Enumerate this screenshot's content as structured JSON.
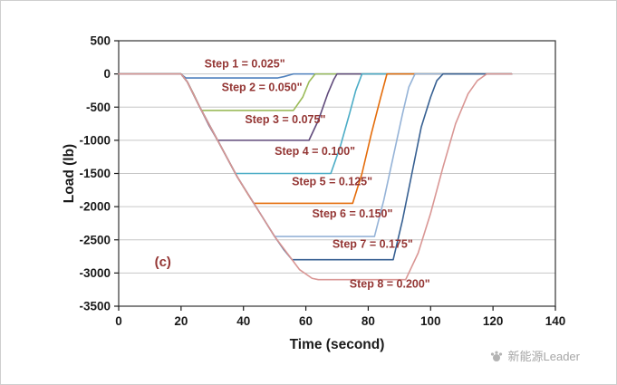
{
  "watermark": {
    "label": "新能源Leader"
  },
  "chart_data": {
    "type": "line",
    "title": "",
    "xlabel": "Time (second)",
    "ylabel": "Load (lb)",
    "xlim": [
      0,
      140
    ],
    "ylim": [
      -3500,
      500
    ],
    "xticks": [
      0,
      20,
      40,
      60,
      80,
      100,
      120,
      140
    ],
    "yticks": [
      500,
      0,
      -500,
      -1000,
      -1500,
      -2000,
      -2500,
      -3000,
      -3500
    ],
    "grid": "horizontal",
    "gridline_color": "#c6c6c6",
    "legend": "none",
    "axis_color": "#1a1a1a",
    "annotation_color": "#943634",
    "series": [
      {
        "name": "Step 1 = 0.025\"",
        "color": "#4F81BD",
        "plateau_load": -60,
        "points": [
          [
            0,
            0
          ],
          [
            20,
            0
          ],
          [
            20.7,
            -30
          ],
          [
            21.5,
            -60
          ],
          [
            51,
            -60
          ],
          [
            53,
            -40
          ],
          [
            56,
            0
          ],
          [
            126,
            0
          ]
        ]
      },
      {
        "name": "Step 2 = 0.050\"",
        "color": "#9BBB59",
        "plateau_load": -550,
        "points": [
          [
            0,
            0
          ],
          [
            20,
            0
          ],
          [
            22,
            -120
          ],
          [
            24,
            -300
          ],
          [
            26.5,
            -550
          ],
          [
            56,
            -550
          ],
          [
            59,
            -350
          ],
          [
            61,
            -120
          ],
          [
            63,
            0
          ],
          [
            126,
            0
          ]
        ]
      },
      {
        "name": "Step 3 = 0.075\"",
        "color": "#604A7B",
        "plateau_load": -1000,
        "points": [
          [
            0,
            0
          ],
          [
            20,
            0
          ],
          [
            22,
            -120
          ],
          [
            26,
            -500
          ],
          [
            29,
            -780
          ],
          [
            31.7,
            -1000
          ],
          [
            61,
            -1000
          ],
          [
            64,
            -700
          ],
          [
            67,
            -300
          ],
          [
            69,
            -80
          ],
          [
            70,
            0
          ],
          [
            126,
            0
          ]
        ]
      },
      {
        "name": "Step 4 = 0.100\"",
        "color": "#4BACC6",
        "plateau_load": -1500,
        "points": [
          [
            0,
            0
          ],
          [
            20,
            0
          ],
          [
            22,
            -120
          ],
          [
            26,
            -500
          ],
          [
            30,
            -850
          ],
          [
            34,
            -1200
          ],
          [
            37.4,
            -1500
          ],
          [
            68,
            -1500
          ],
          [
            71,
            -1100
          ],
          [
            74,
            -600
          ],
          [
            76,
            -250
          ],
          [
            78,
            0
          ],
          [
            126,
            0
          ]
        ]
      },
      {
        "name": "Step 5 = 0.125\"",
        "color": "#E46C0A",
        "plateau_load": -1950,
        "points": [
          [
            0,
            0
          ],
          [
            20,
            0
          ],
          [
            22,
            -120
          ],
          [
            26,
            -500
          ],
          [
            30,
            -850
          ],
          [
            34,
            -1200
          ],
          [
            38,
            -1550
          ],
          [
            41,
            -1780
          ],
          [
            43.3,
            -1950
          ],
          [
            75,
            -1950
          ],
          [
            78,
            -1500
          ],
          [
            81,
            -900
          ],
          [
            84,
            -350
          ],
          [
            86,
            0
          ],
          [
            126,
            0
          ]
        ]
      },
      {
        "name": "Step 6 = 0.150\"",
        "color": "#95B3D7",
        "plateau_load": -2450,
        "points": [
          [
            0,
            0
          ],
          [
            20,
            0
          ],
          [
            22,
            -120
          ],
          [
            26,
            -500
          ],
          [
            30,
            -850
          ],
          [
            34,
            -1200
          ],
          [
            38,
            -1550
          ],
          [
            42,
            -1850
          ],
          [
            46,
            -2150
          ],
          [
            50,
            -2450
          ],
          [
            82,
            -2450
          ],
          [
            85,
            -1900
          ],
          [
            88,
            -1250
          ],
          [
            91,
            -600
          ],
          [
            93,
            -200
          ],
          [
            95,
            0
          ],
          [
            126,
            0
          ]
        ]
      },
      {
        "name": "Step 7 = 0.175\"",
        "color": "#376092",
        "plateau_load": -2800,
        "points": [
          [
            0,
            0
          ],
          [
            20,
            0
          ],
          [
            22,
            -120
          ],
          [
            26,
            -500
          ],
          [
            30,
            -850
          ],
          [
            34,
            -1200
          ],
          [
            38,
            -1550
          ],
          [
            42,
            -1850
          ],
          [
            46,
            -2150
          ],
          [
            50,
            -2450
          ],
          [
            53,
            -2650
          ],
          [
            55.6,
            -2800
          ],
          [
            88,
            -2800
          ],
          [
            91,
            -2200
          ],
          [
            94,
            -1500
          ],
          [
            97,
            -800
          ],
          [
            100,
            -350
          ],
          [
            102,
            -100
          ],
          [
            104,
            0
          ],
          [
            126,
            0
          ]
        ]
      },
      {
        "name": "Step 8 = 0.200\"",
        "color": "#D99694",
        "plateau_load": -3100,
        "points": [
          [
            0,
            0
          ],
          [
            20,
            0
          ],
          [
            22,
            -120
          ],
          [
            26,
            -500
          ],
          [
            30,
            -850
          ],
          [
            34,
            -1200
          ],
          [
            38,
            -1550
          ],
          [
            42,
            -1850
          ],
          [
            46,
            -2150
          ],
          [
            50,
            -2450
          ],
          [
            54,
            -2700
          ],
          [
            58,
            -2950
          ],
          [
            62,
            -3080
          ],
          [
            64,
            -3100
          ],
          [
            92,
            -3100
          ],
          [
            96,
            -2700
          ],
          [
            100,
            -2100
          ],
          [
            104,
            -1400
          ],
          [
            108,
            -750
          ],
          [
            112,
            -300
          ],
          [
            115,
            -100
          ],
          [
            118,
            0
          ],
          [
            126,
            0
          ]
        ]
      }
    ],
    "annotations": [
      {
        "text": "Step 1 = 0.025\"",
        "x": 27.5,
        "y": 100,
        "color": "#943634",
        "size": 12.5
      },
      {
        "text": "Step 2 = 0.050\"",
        "x": 33,
        "y": -260,
        "color": "#943634",
        "size": 12.5
      },
      {
        "text": "Step 3 = 0.075\"",
        "x": 40.5,
        "y": -740,
        "color": "#943634",
        "size": 12.5
      },
      {
        "text": "Step 4 = 0.100\"",
        "x": 50,
        "y": -1220,
        "color": "#943634",
        "size": 12.5
      },
      {
        "text": "Step 5 = 0.125\"",
        "x": 55.5,
        "y": -1680,
        "color": "#943634",
        "size": 12.5
      },
      {
        "text": "Step 6 = 0.150\"",
        "x": 62,
        "y": -2160,
        "color": "#943634",
        "size": 12.5
      },
      {
        "text": "Step 7 = 0.175\"",
        "x": 68.5,
        "y": -2620,
        "color": "#943634",
        "size": 12.5
      },
      {
        "text": "Step 8 = 0.200\"",
        "x": 74,
        "y": -3220,
        "color": "#943634",
        "size": 12.5
      },
      {
        "text": "(c)",
        "x": 11.5,
        "y": -2900,
        "color": "#943634",
        "size": 15
      }
    ]
  }
}
